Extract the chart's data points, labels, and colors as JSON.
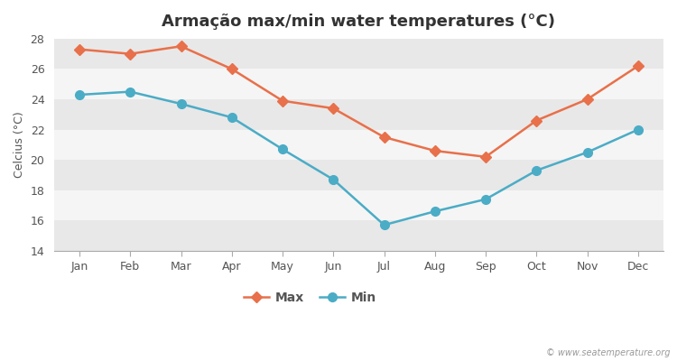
{
  "title": "Armação max/min water temperatures (°C)",
  "ylabel": "Celcius (°C)",
  "months": [
    "Jan",
    "Feb",
    "Mar",
    "Apr",
    "May",
    "Jun",
    "Jul",
    "Aug",
    "Sep",
    "Oct",
    "Nov",
    "Dec"
  ],
  "max_values": [
    27.3,
    27.0,
    27.5,
    26.0,
    23.9,
    23.4,
    21.5,
    20.6,
    20.2,
    22.6,
    24.0,
    26.2
  ],
  "min_values": [
    24.3,
    24.5,
    23.7,
    22.8,
    20.7,
    18.7,
    15.7,
    16.6,
    17.4,
    19.3,
    20.5,
    22.0
  ],
  "max_color": "#e8704a",
  "min_color": "#4bacc6",
  "fig_bg_color": "#ffffff",
  "band_colors": [
    "#e8e8e8",
    "#f5f5f5"
  ],
  "ylim": [
    14,
    28
  ],
  "yticks": [
    14,
    16,
    18,
    20,
    22,
    24,
    26,
    28
  ],
  "marker_max": "D",
  "marker_min": "o",
  "marker_size_max": 6,
  "marker_size_min": 7,
  "line_width": 1.8,
  "title_fontsize": 13,
  "label_fontsize": 9,
  "tick_fontsize": 9,
  "legend_labels": [
    "Max",
    "Min"
  ],
  "watermark": "© www.seatemperature.org",
  "spine_color": "#aaaaaa"
}
